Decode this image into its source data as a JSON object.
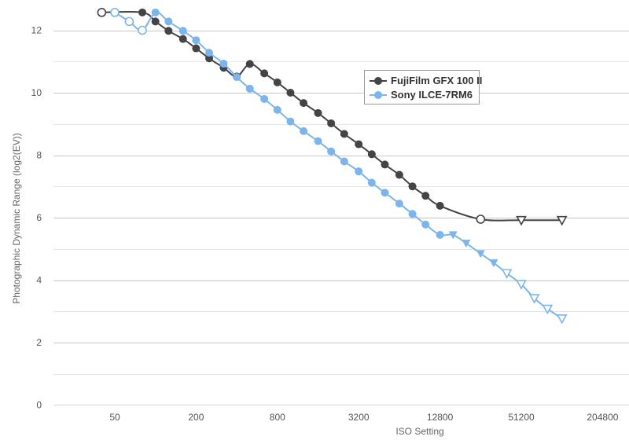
{
  "chart_data": {
    "type": "line",
    "title": "",
    "xlabel": "ISO Setting",
    "ylabel": "Photographic Dynamic Range (log2(EV))",
    "x_scale": "log2",
    "x_ticks": [
      "50",
      "200",
      "800",
      "3200",
      "12800",
      "51200",
      "204800"
    ],
    "y_ticks": [
      "0",
      "2",
      "4",
      "6",
      "8",
      "10",
      "12"
    ],
    "ylim": [
      0,
      12.6
    ],
    "grid": true,
    "legend_position": "center-right",
    "series": [
      {
        "name": "FujiFilm GFX 100 II",
        "color": "#434348",
        "points": [
          {
            "x": 40,
            "y": 12.57,
            "marker": "open-circle"
          },
          {
            "x": 80,
            "y": 12.57,
            "marker": "filled-circle"
          },
          {
            "x": 100,
            "y": 12.28,
            "marker": "filled-circle"
          },
          {
            "x": 125,
            "y": 11.98,
            "marker": "filled-circle"
          },
          {
            "x": 160,
            "y": 11.72,
            "marker": "filled-circle"
          },
          {
            "x": 200,
            "y": 11.42,
            "marker": "filled-circle"
          },
          {
            "x": 250,
            "y": 11.1,
            "marker": "filled-circle"
          },
          {
            "x": 320,
            "y": 10.8,
            "marker": "filled-circle"
          },
          {
            "x": 400,
            "y": 10.52,
            "marker": "filled-circle"
          },
          {
            "x": 500,
            "y": 10.92,
            "marker": "filled-circle"
          },
          {
            "x": 640,
            "y": 10.62,
            "marker": "filled-circle"
          },
          {
            "x": 800,
            "y": 10.33,
            "marker": "filled-circle"
          },
          {
            "x": 1000,
            "y": 10.0,
            "marker": "filled-circle"
          },
          {
            "x": 1250,
            "y": 9.67,
            "marker": "filled-circle"
          },
          {
            "x": 1600,
            "y": 9.35,
            "marker": "filled-circle"
          },
          {
            "x": 2000,
            "y": 9.02,
            "marker": "filled-circle"
          },
          {
            "x": 2500,
            "y": 8.68,
            "marker": "filled-circle"
          },
          {
            "x": 3200,
            "y": 8.35,
            "marker": "filled-circle"
          },
          {
            "x": 4000,
            "y": 8.03,
            "marker": "filled-circle"
          },
          {
            "x": 5000,
            "y": 7.7,
            "marker": "filled-circle"
          },
          {
            "x": 6400,
            "y": 7.37,
            "marker": "filled-circle"
          },
          {
            "x": 8000,
            "y": 7.0,
            "marker": "filled-circle"
          },
          {
            "x": 10000,
            "y": 6.7,
            "marker": "filled-circle"
          },
          {
            "x": 12800,
            "y": 6.38,
            "marker": "filled-circle"
          },
          {
            "x": 25600,
            "y": 5.95,
            "marker": "open-circle"
          },
          {
            "x": 51200,
            "y": 5.92,
            "marker": "open-triangle"
          },
          {
            "x": 102400,
            "y": 5.92,
            "marker": "open-triangle"
          }
        ]
      },
      {
        "name": "Sony ILCE-7RM6",
        "color": "#7cb5ec",
        "points": [
          {
            "x": 50,
            "y": 12.57,
            "marker": "open-circle"
          },
          {
            "x": 64,
            "y": 12.28,
            "marker": "open-circle"
          },
          {
            "x": 80,
            "y": 12.0,
            "marker": "open-circle"
          },
          {
            "x": 100,
            "y": 12.57,
            "marker": "filled-circle"
          },
          {
            "x": 125,
            "y": 12.28,
            "marker": "filled-circle"
          },
          {
            "x": 160,
            "y": 11.98,
            "marker": "filled-circle"
          },
          {
            "x": 200,
            "y": 11.68,
            "marker": "filled-circle"
          },
          {
            "x": 250,
            "y": 11.28,
            "marker": "filled-circle"
          },
          {
            "x": 320,
            "y": 10.93,
            "marker": "filled-circle"
          },
          {
            "x": 400,
            "y": 10.5,
            "marker": "filled-circle"
          },
          {
            "x": 500,
            "y": 10.13,
            "marker": "filled-circle"
          },
          {
            "x": 640,
            "y": 9.8,
            "marker": "filled-circle"
          },
          {
            "x": 800,
            "y": 9.45,
            "marker": "filled-circle"
          },
          {
            "x": 1000,
            "y": 9.08,
            "marker": "filled-circle"
          },
          {
            "x": 1250,
            "y": 8.77,
            "marker": "filled-circle"
          },
          {
            "x": 1600,
            "y": 8.45,
            "marker": "filled-circle"
          },
          {
            "x": 2000,
            "y": 8.12,
            "marker": "filled-circle"
          },
          {
            "x": 2500,
            "y": 7.8,
            "marker": "filled-circle"
          },
          {
            "x": 3200,
            "y": 7.48,
            "marker": "filled-circle"
          },
          {
            "x": 4000,
            "y": 7.12,
            "marker": "filled-circle"
          },
          {
            "x": 5000,
            "y": 6.8,
            "marker": "filled-circle"
          },
          {
            "x": 6400,
            "y": 6.45,
            "marker": "filled-circle"
          },
          {
            "x": 8000,
            "y": 6.12,
            "marker": "filled-circle"
          },
          {
            "x": 10000,
            "y": 5.78,
            "marker": "filled-circle"
          },
          {
            "x": 12800,
            "y": 5.45,
            "marker": "filled-circle"
          },
          {
            "x": 16000,
            "y": 5.45,
            "marker": "filled-triangle"
          },
          {
            "x": 20000,
            "y": 5.18,
            "marker": "filled-triangle"
          },
          {
            "x": 25600,
            "y": 4.85,
            "marker": "filled-triangle"
          },
          {
            "x": 32000,
            "y": 4.55,
            "marker": "filled-triangle"
          },
          {
            "x": 40000,
            "y": 4.22,
            "marker": "open-triangle"
          },
          {
            "x": 51200,
            "y": 3.87,
            "marker": "open-triangle"
          },
          {
            "x": 64000,
            "y": 3.42,
            "marker": "open-triangle"
          },
          {
            "x": 80000,
            "y": 3.08,
            "marker": "open-triangle"
          },
          {
            "x": 102400,
            "y": 2.77,
            "marker": "open-triangle"
          }
        ]
      }
    ]
  }
}
